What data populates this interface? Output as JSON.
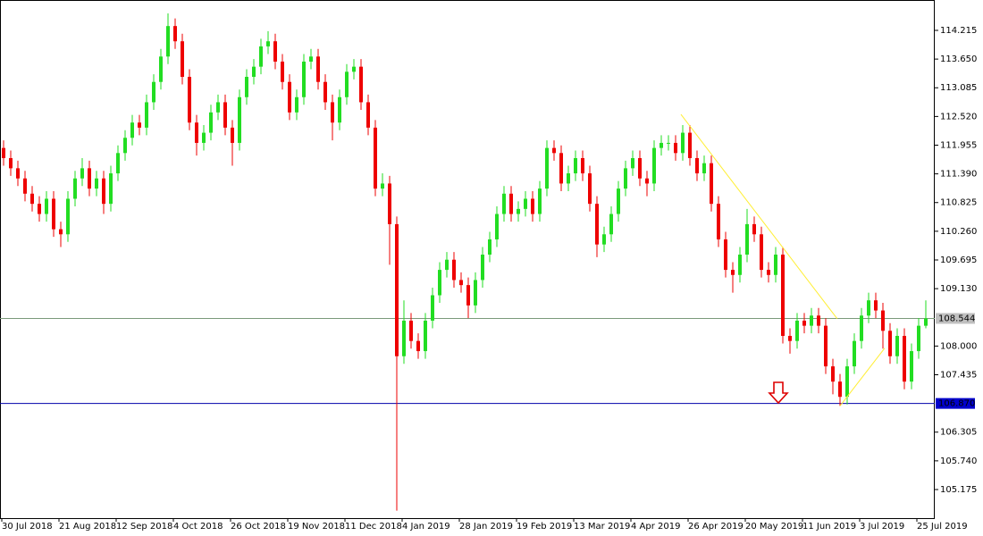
{
  "chart_data": {
    "type": "candlestick",
    "up_color": "#22dd22",
    "down_color": "#ee0000",
    "ylim": [
      104.612,
      114.813
    ],
    "yticks": [
      114.215,
      {
        "value": 113.65,
        "label": "113.650"
      },
      113.085,
      {
        "value": 112.52,
        "label": "112.520"
      },
      111.955,
      {
        "value": 111.39,
        "label": "111.390"
      },
      110.825,
      {
        "value": 110.26,
        "label": "110.260"
      },
      109.695,
      {
        "value": 109.13,
        "label": "109.130"
      },
      {
        "value": 108,
        "label": "108.000"
      },
      107.435,
      106.305,
      {
        "value": 105.74,
        "label": "105.740"
      },
      105.175
    ],
    "categories": [
      "30 Jul 2018",
      null,
      null,
      null,
      null,
      null,
      null,
      null,
      "21 Aug 2018",
      null,
      null,
      null,
      null,
      null,
      null,
      null,
      "12 Sep 2018",
      null,
      null,
      null,
      null,
      null,
      null,
      null,
      "4 Oct 2018",
      null,
      null,
      null,
      null,
      null,
      null,
      null,
      "26 Oct 2018",
      null,
      null,
      null,
      null,
      null,
      null,
      null,
      "19 Nov 2018",
      null,
      null,
      null,
      null,
      null,
      null,
      null,
      "11 Dec 2018",
      null,
      null,
      null,
      null,
      null,
      null,
      null,
      "4 Jan 2019",
      null,
      null,
      null,
      null,
      null,
      null,
      null,
      "28 Jan 2019",
      null,
      null,
      null,
      null,
      null,
      null,
      null,
      "19 Feb 2019",
      null,
      null,
      null,
      null,
      null,
      null,
      null,
      "13 Mar 2019",
      null,
      null,
      null,
      null,
      null,
      null,
      null,
      "4 Apr 2019",
      null,
      null,
      null,
      null,
      null,
      null,
      null,
      "26 Apr 2019",
      null,
      null,
      null,
      null,
      null,
      null,
      null,
      "20 May 2019",
      null,
      null,
      null,
      null,
      null,
      null,
      null,
      "11 Jun 2019",
      null,
      null,
      null,
      null,
      null,
      null,
      null,
      "3 Jul 2019",
      null,
      null,
      null,
      null,
      null,
      null,
      null,
      "25 Jul 2019",
      null
    ],
    "ohlc": [
      [
        111.9,
        112.05,
        111.55,
        111.7
      ],
      [
        111.7,
        111.85,
        111.35,
        111.5
      ],
      [
        111.5,
        111.65,
        111.15,
        111.3
      ],
      [
        111.3,
        111.45,
        110.85,
        111.0
      ],
      [
        111.0,
        111.15,
        110.65,
        110.8
      ],
      [
        110.8,
        110.95,
        110.45,
        110.6
      ],
      [
        110.6,
        111.05,
        110.45,
        110.9
      ],
      [
        110.9,
        111.05,
        110.15,
        110.3
      ],
      [
        110.3,
        110.45,
        109.95,
        110.2
      ],
      [
        110.2,
        111.05,
        110.05,
        110.9
      ],
      [
        110.9,
        111.45,
        110.75,
        111.3
      ],
      [
        111.3,
        111.7,
        111.15,
        111.5
      ],
      [
        111.5,
        111.65,
        110.95,
        111.1
      ],
      [
        111.1,
        111.45,
        110.95,
        111.3
      ],
      [
        111.3,
        111.45,
        110.6,
        110.8
      ],
      [
        110.8,
        111.55,
        110.65,
        111.4
      ],
      [
        111.4,
        111.95,
        111.25,
        111.8
      ],
      [
        111.8,
        112.25,
        111.65,
        112.1
      ],
      [
        112.1,
        112.55,
        111.95,
        112.4
      ],
      [
        112.4,
        112.55,
        112.15,
        112.3
      ],
      [
        112.3,
        112.95,
        112.15,
        112.8
      ],
      [
        112.8,
        113.35,
        112.65,
        113.2
      ],
      [
        113.2,
        113.85,
        113.05,
        113.7
      ],
      [
        113.7,
        114.55,
        113.55,
        114.3
      ],
      [
        114.3,
        114.45,
        113.85,
        114.0
      ],
      [
        114.0,
        114.15,
        113.15,
        113.3
      ],
      [
        113.3,
        113.45,
        112.25,
        112.4
      ],
      [
        112.4,
        112.55,
        111.75,
        112.0
      ],
      [
        112.0,
        112.35,
        111.85,
        112.2
      ],
      [
        112.2,
        112.75,
        112.05,
        112.6
      ],
      [
        112.6,
        112.95,
        112.45,
        112.8
      ],
      [
        112.8,
        112.95,
        112.15,
        112.3
      ],
      [
        112.3,
        112.45,
        111.55,
        112.0
      ],
      [
        112.0,
        113.05,
        111.85,
        112.9
      ],
      [
        112.9,
        113.45,
        112.75,
        113.3
      ],
      [
        113.3,
        113.65,
        113.15,
        113.5
      ],
      [
        113.5,
        114.05,
        113.35,
        113.9
      ],
      [
        113.9,
        114.2,
        113.75,
        114.0
      ],
      [
        114.0,
        114.15,
        113.45,
        113.6
      ],
      [
        113.6,
        113.75,
        113.05,
        113.2
      ],
      [
        113.2,
        113.35,
        112.45,
        112.6
      ],
      [
        112.6,
        113.05,
        112.45,
        112.9
      ],
      [
        112.9,
        113.75,
        112.75,
        113.6
      ],
      [
        113.6,
        113.85,
        113.45,
        113.7
      ],
      [
        113.7,
        113.85,
        113.05,
        113.2
      ],
      [
        113.2,
        113.35,
        112.65,
        112.8
      ],
      [
        112.8,
        112.95,
        112.05,
        112.4
      ],
      [
        112.4,
        113.05,
        112.25,
        112.9
      ],
      [
        112.9,
        113.55,
        112.75,
        113.4
      ],
      [
        113.4,
        113.65,
        113.25,
        113.5
      ],
      [
        113.5,
        113.65,
        112.65,
        112.8
      ],
      [
        112.8,
        112.95,
        112.15,
        112.3
      ],
      [
        112.3,
        112.45,
        110.95,
        111.1
      ],
      [
        111.1,
        111.4,
        110.95,
        111.2
      ],
      [
        111.2,
        111.35,
        109.6,
        110.4
      ],
      [
        110.4,
        110.55,
        104.76,
        107.8
      ],
      [
        107.8,
        108.9,
        107.65,
        108.5
      ],
      [
        108.5,
        108.65,
        107.95,
        108.1
      ],
      [
        108.1,
        108.25,
        107.75,
        107.9
      ],
      [
        107.9,
        108.65,
        107.75,
        108.5
      ],
      [
        108.5,
        109.15,
        108.35,
        109.0
      ],
      [
        109.0,
        109.65,
        108.85,
        109.5
      ],
      [
        109.5,
        109.85,
        109.35,
        109.7
      ],
      [
        109.7,
        109.85,
        109.15,
        109.3
      ],
      [
        109.3,
        109.45,
        109.05,
        109.2
      ],
      [
        109.2,
        109.35,
        108.55,
        108.8
      ],
      [
        108.8,
        109.45,
        108.65,
        109.3
      ],
      [
        109.3,
        109.95,
        109.15,
        109.8
      ],
      [
        109.8,
        110.25,
        109.65,
        110.1
      ],
      [
        110.1,
        110.75,
        109.95,
        110.6
      ],
      [
        110.6,
        111.15,
        110.45,
        111.0
      ],
      [
        111.0,
        111.15,
        110.45,
        110.6
      ],
      [
        110.6,
        110.85,
        110.45,
        110.7
      ],
      [
        110.7,
        111.05,
        110.55,
        110.9
      ],
      [
        110.9,
        111.05,
        110.45,
        110.6
      ],
      [
        110.6,
        111.25,
        110.45,
        111.1
      ],
      [
        111.1,
        112.05,
        110.95,
        111.9
      ],
      [
        111.9,
        112.05,
        111.65,
        111.8
      ],
      [
        111.8,
        111.95,
        111.05,
        111.2
      ],
      [
        111.2,
        111.55,
        111.05,
        111.4
      ],
      [
        111.4,
        111.85,
        111.25,
        111.7
      ],
      [
        111.7,
        111.85,
        111.25,
        111.4
      ],
      [
        111.4,
        111.55,
        110.65,
        110.8
      ],
      [
        110.8,
        110.95,
        109.75,
        110.0
      ],
      [
        110.0,
        110.35,
        109.85,
        110.2
      ],
      [
        110.2,
        110.75,
        110.05,
        110.6
      ],
      [
        110.6,
        111.25,
        110.45,
        111.1
      ],
      [
        111.1,
        111.65,
        110.95,
        111.5
      ],
      [
        111.5,
        111.85,
        111.35,
        111.7
      ],
      [
        111.7,
        111.85,
        111.15,
        111.3
      ],
      [
        111.3,
        111.45,
        110.95,
        111.2
      ],
      [
        111.2,
        112.05,
        111.05,
        111.9
      ],
      [
        111.9,
        112.15,
        111.75,
        112.0
      ],
      [
        112.0,
        112.15,
        111.85,
        112.0
      ],
      [
        112.0,
        112.15,
        111.65,
        111.8
      ],
      [
        111.8,
        112.35,
        111.65,
        112.2
      ],
      [
        112.2,
        112.35,
        111.55,
        111.7
      ],
      [
        111.7,
        111.85,
        111.25,
        111.4
      ],
      [
        111.4,
        111.75,
        111.25,
        111.6
      ],
      [
        111.6,
        111.75,
        110.65,
        110.8
      ],
      [
        110.8,
        110.95,
        109.95,
        110.1
      ],
      [
        110.1,
        110.25,
        109.35,
        109.5
      ],
      [
        109.5,
        109.65,
        109.05,
        109.4
      ],
      [
        109.4,
        109.95,
        109.25,
        109.8
      ],
      [
        109.8,
        110.7,
        109.65,
        110.4
      ],
      [
        110.4,
        110.55,
        110.05,
        110.2
      ],
      [
        110.2,
        110.35,
        109.35,
        109.5
      ],
      [
        109.5,
        109.65,
        109.25,
        109.4
      ],
      [
        109.4,
        109.95,
        109.25,
        109.8
      ],
      [
        109.8,
        109.95,
        108.05,
        108.2
      ],
      [
        108.2,
        108.35,
        107.85,
        108.1
      ],
      [
        108.1,
        108.65,
        107.95,
        108.5
      ],
      [
        108.5,
        108.65,
        108.25,
        108.4
      ],
      [
        108.4,
        108.75,
        108.25,
        108.6
      ],
      [
        108.6,
        108.75,
        108.25,
        108.4
      ],
      [
        108.4,
        108.55,
        107.45,
        107.6
      ],
      [
        107.6,
        107.75,
        107.05,
        107.3
      ],
      [
        107.3,
        107.45,
        106.82,
        107.0
      ],
      [
        107.0,
        107.75,
        106.85,
        107.6
      ],
      [
        107.6,
        108.25,
        107.45,
        108.1
      ],
      [
        108.1,
        108.75,
        107.95,
        108.6
      ],
      [
        108.6,
        109.05,
        108.45,
        108.9
      ],
      [
        108.9,
        109.05,
        108.55,
        108.7
      ],
      [
        108.7,
        108.85,
        107.95,
        108.3
      ],
      [
        108.3,
        108.45,
        107.65,
        107.8
      ],
      [
        107.8,
        108.35,
        107.65,
        108.2
      ],
      [
        108.2,
        108.35,
        107.15,
        107.3
      ],
      [
        107.3,
        108.05,
        107.15,
        107.9
      ],
      [
        107.9,
        108.55,
        107.75,
        108.4
      ],
      [
        108.4,
        108.9,
        108.35,
        108.544
      ]
    ],
    "hlines": [
      {
        "value": 108.544,
        "label": "108.544",
        "color": "#7a9a7a",
        "box": "#c0c0c0"
      },
      {
        "value": 106.87,
        "label": "106.870",
        "color": "#0000aa",
        "box": "#0000cc"
      }
    ],
    "trendlines": [
      {
        "from": {
          "x": 94.75,
          "y": 112.56
        },
        "to": {
          "x": 116.6,
          "y": 108.54
        },
        "color": "#ffee33"
      },
      {
        "from": {
          "x": 117,
          "y": 106.82
        },
        "to": {
          "x": 123.25,
          "y": 107.96
        },
        "color": "#ffee33"
      }
    ]
  }
}
